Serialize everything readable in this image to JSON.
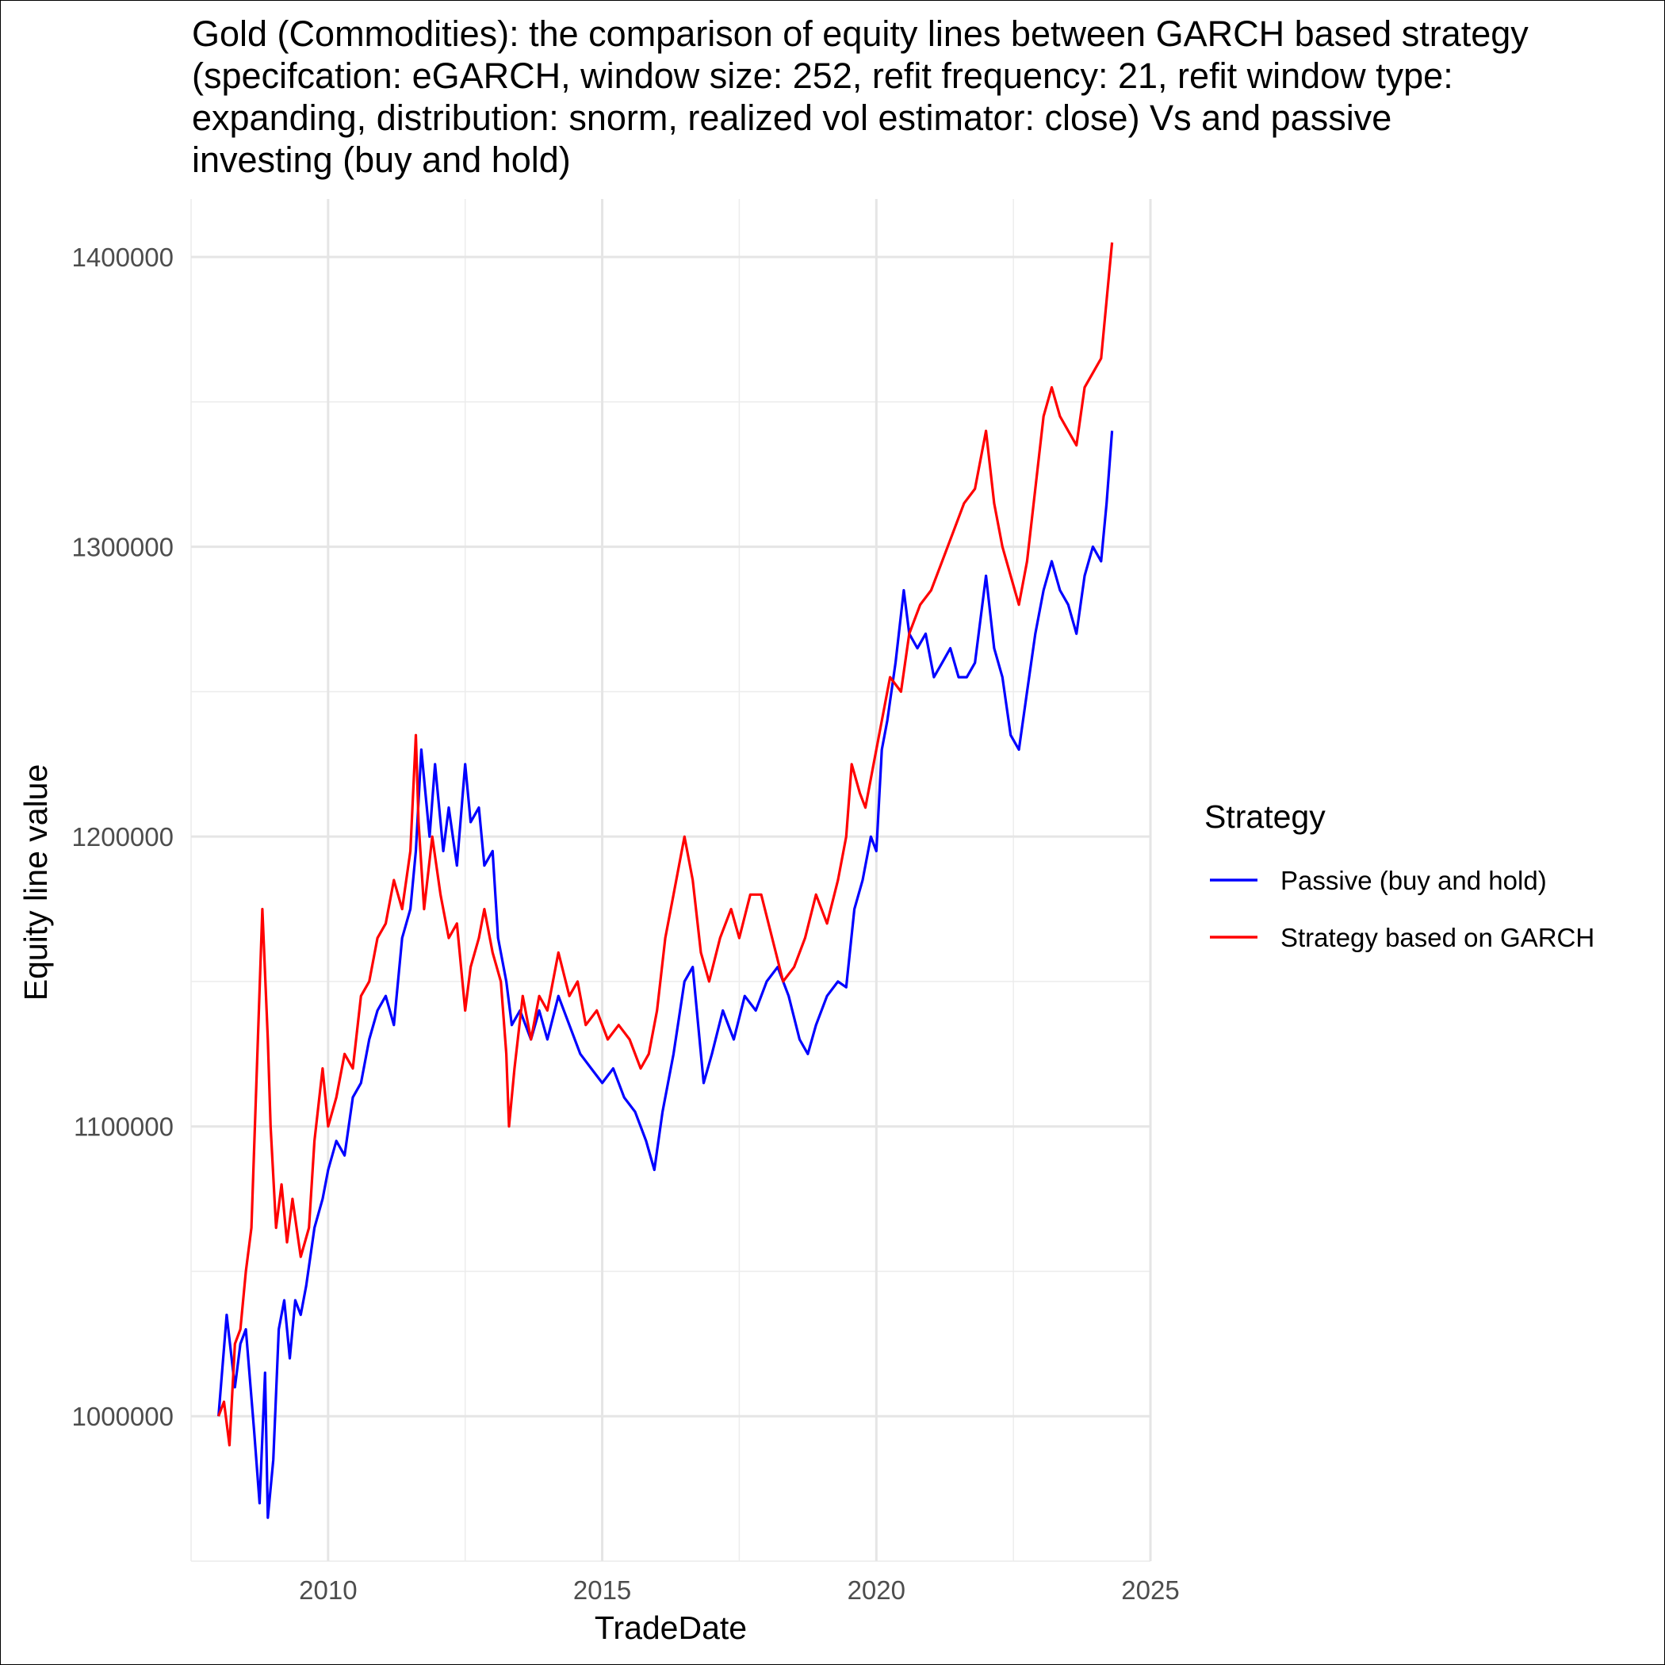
{
  "chart_data": {
    "type": "line",
    "title": "Gold (Commodities): the comparison of equity lines between GARCH based strategy\n(specifcation: eGARCH, window size: 252, refit frequency: 21, refit window type:\nexpanding, distribution: snorm, realized vol estimator: close) Vs and passive\ninvesting (buy and hold)",
    "xlabel": "TradeDate",
    "ylabel": "Equity line value",
    "xlim": [
      2007.5,
      2025.0
    ],
    "ylim": [
      950000,
      1420000
    ],
    "x_ticks": [
      2010,
      2015,
      2020,
      2025
    ],
    "x_tick_labels": [
      "2010",
      "2015",
      "2020",
      "2025"
    ],
    "y_ticks": [
      1000000,
      1100000,
      1200000,
      1300000,
      1400000
    ],
    "y_tick_labels": [
      "1000000",
      "1100000",
      "1200000",
      "1300000",
      "1400000"
    ],
    "grid": true,
    "legend": {
      "title": "Strategy",
      "position": "right"
    },
    "series": [
      {
        "name": "Passive (buy and hold)",
        "color": "#0000ff",
        "x": [
          2008.0,
          2008.15,
          2008.3,
          2008.4,
          2008.5,
          2008.65,
          2008.75,
          2008.85,
          2008.9,
          2009.0,
          2009.1,
          2009.2,
          2009.3,
          2009.4,
          2009.5,
          2009.6,
          2009.75,
          2009.9,
          2010.0,
          2010.15,
          2010.3,
          2010.45,
          2010.6,
          2010.75,
          2010.9,
          2011.05,
          2011.2,
          2011.35,
          2011.5,
          2011.6,
          2011.7,
          2011.85,
          2011.95,
          2012.1,
          2012.2,
          2012.35,
          2012.5,
          2012.6,
          2012.75,
          2012.85,
          2013.0,
          2013.1,
          2013.25,
          2013.35,
          2013.5,
          2013.7,
          2013.85,
          2014.0,
          2014.2,
          2014.4,
          2014.6,
          2014.8,
          2015.0,
          2015.2,
          2015.4,
          2015.6,
          2015.8,
          2015.95,
          2016.1,
          2016.3,
          2016.5,
          2016.65,
          2016.85,
          2017.0,
          2017.2,
          2017.4,
          2017.6,
          2017.8,
          2018.0,
          2018.2,
          2018.4,
          2018.6,
          2018.75,
          2018.9,
          2019.1,
          2019.3,
          2019.45,
          2019.6,
          2019.75,
          2019.9,
          2020.0,
          2020.1,
          2020.2,
          2020.35,
          2020.5,
          2020.6,
          2020.75,
          2020.9,
          2021.05,
          2021.2,
          2021.35,
          2021.5,
          2021.65,
          2021.8,
          2022.0,
          2022.15,
          2022.3,
          2022.45,
          2022.6,
          2022.75,
          2022.9,
          2023.05,
          2023.2,
          2023.35,
          2023.5,
          2023.65,
          2023.8,
          2023.95,
          2024.1,
          2024.2,
          2024.3
        ],
        "values": [
          1000000,
          1035000,
          1010000,
          1025000,
          1030000,
          995000,
          970000,
          1015000,
          965000,
          985000,
          1030000,
          1040000,
          1020000,
          1040000,
          1035000,
          1045000,
          1065000,
          1075000,
          1085000,
          1095000,
          1090000,
          1110000,
          1115000,
          1130000,
          1140000,
          1145000,
          1135000,
          1165000,
          1175000,
          1195000,
          1230000,
          1200000,
          1225000,
          1195000,
          1210000,
          1190000,
          1225000,
          1205000,
          1210000,
          1190000,
          1195000,
          1165000,
          1150000,
          1135000,
          1140000,
          1130000,
          1140000,
          1130000,
          1145000,
          1135000,
          1125000,
          1120000,
          1115000,
          1120000,
          1110000,
          1105000,
          1095000,
          1085000,
          1105000,
          1125000,
          1150000,
          1155000,
          1115000,
          1125000,
          1140000,
          1130000,
          1145000,
          1140000,
          1150000,
          1155000,
          1145000,
          1130000,
          1125000,
          1135000,
          1145000,
          1150000,
          1148000,
          1175000,
          1185000,
          1200000,
          1195000,
          1230000,
          1240000,
          1260000,
          1285000,
          1270000,
          1265000,
          1270000,
          1255000,
          1260000,
          1265000,
          1255000,
          1255000,
          1260000,
          1290000,
          1265000,
          1255000,
          1235000,
          1230000,
          1250000,
          1270000,
          1285000,
          1295000,
          1285000,
          1280000,
          1270000,
          1290000,
          1300000,
          1295000,
          1315000,
          1340000
        ]
      },
      {
        "name": "Strategy based on GARCH",
        "color": "#ff0000",
        "x": [
          2008.0,
          2008.1,
          2008.2,
          2008.3,
          2008.4,
          2008.5,
          2008.6,
          2008.7,
          2008.8,
          2008.9,
          2008.95,
          2009.05,
          2009.15,
          2009.25,
          2009.35,
          2009.5,
          2009.65,
          2009.75,
          2009.9,
          2010.0,
          2010.15,
          2010.3,
          2010.45,
          2010.6,
          2010.75,
          2010.9,
          2011.05,
          2011.2,
          2011.35,
          2011.5,
          2011.6,
          2011.65,
          2011.75,
          2011.9,
          2012.05,
          2012.2,
          2012.35,
          2012.5,
          2012.6,
          2012.75,
          2012.85,
          2013.0,
          2013.15,
          2013.25,
          2013.3,
          2013.4,
          2013.55,
          2013.7,
          2013.85,
          2014.0,
          2014.2,
          2014.4,
          2014.55,
          2014.7,
          2014.9,
          2015.1,
          2015.3,
          2015.5,
          2015.7,
          2015.85,
          2016.0,
          2016.15,
          2016.3,
          2016.5,
          2016.65,
          2016.8,
          2016.95,
          2017.15,
          2017.35,
          2017.5,
          2017.7,
          2017.9,
          2018.1,
          2018.3,
          2018.5,
          2018.7,
          2018.9,
          2019.1,
          2019.3,
          2019.45,
          2019.55,
          2019.7,
          2019.8,
          2019.95,
          2020.1,
          2020.25,
          2020.45,
          2020.6,
          2020.8,
          2021.0,
          2021.2,
          2021.4,
          2021.6,
          2021.8,
          2022.0,
          2022.15,
          2022.3,
          2022.45,
          2022.6,
          2022.75,
          2022.9,
          2023.05,
          2023.2,
          2023.35,
          2023.5,
          2023.65,
          2023.8,
          2023.95,
          2024.1,
          2024.2,
          2024.3
        ],
        "values": [
          1000000,
          1005000,
          990000,
          1025000,
          1030000,
          1050000,
          1065000,
          1120000,
          1175000,
          1130000,
          1100000,
          1065000,
          1080000,
          1060000,
          1075000,
          1055000,
          1065000,
          1095000,
          1120000,
          1100000,
          1110000,
          1125000,
          1120000,
          1145000,
          1150000,
          1165000,
          1170000,
          1185000,
          1175000,
          1195000,
          1235000,
          1205000,
          1175000,
          1200000,
          1180000,
          1165000,
          1170000,
          1140000,
          1155000,
          1165000,
          1175000,
          1160000,
          1150000,
          1125000,
          1100000,
          1120000,
          1145000,
          1130000,
          1145000,
          1140000,
          1160000,
          1145000,
          1150000,
          1135000,
          1140000,
          1130000,
          1135000,
          1130000,
          1120000,
          1125000,
          1140000,
          1165000,
          1180000,
          1200000,
          1185000,
          1160000,
          1150000,
          1165000,
          1175000,
          1165000,
          1180000,
          1180000,
          1165000,
          1150000,
          1155000,
          1165000,
          1180000,
          1170000,
          1185000,
          1200000,
          1225000,
          1215000,
          1210000,
          1225000,
          1240000,
          1255000,
          1250000,
          1270000,
          1280000,
          1285000,
          1295000,
          1305000,
          1315000,
          1320000,
          1340000,
          1315000,
          1300000,
          1290000,
          1280000,
          1295000,
          1320000,
          1345000,
          1355000,
          1345000,
          1340000,
          1335000,
          1355000,
          1360000,
          1365000,
          1385000,
          1405000
        ]
      }
    ]
  }
}
